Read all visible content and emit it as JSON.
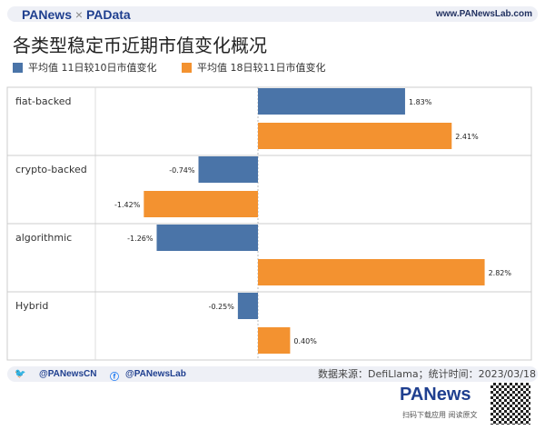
{
  "header": {
    "logo": "PANews",
    "logo_sep": "×",
    "logo2": "PAData",
    "url": "www.PANewsLab.com"
  },
  "footer": {
    "twitter": "@PANewsCN",
    "facebook": "@PANewsLab",
    "source": "数据来源：DefiLlama；统计时间：2023/03/18",
    "brand": "PANews",
    "scan": "扫码下载应用 阅读原文"
  },
  "colors": {
    "series1": "#4a74a8",
    "series2": "#f39230"
  },
  "chart_data": {
    "type": "bar",
    "orientation": "horizontal",
    "title": "各类型稳定币近期市值变化概况",
    "categories": [
      "fiat-backed",
      "crypto-backed",
      "algorithmic",
      "Hybrid"
    ],
    "series": [
      {
        "name": "平均值 11日较10日市值变化",
        "values": [
          1.83,
          -0.74,
          -1.26,
          -0.25
        ],
        "labels": [
          "1.83%",
          "-0.74%",
          "-1.26%",
          "-0.25%"
        ]
      },
      {
        "name": "平均值 18日较11日市值变化",
        "values": [
          2.41,
          -1.42,
          2.82,
          0.4
        ],
        "labels": [
          "2.41%",
          "-1.42%",
          "2.82%",
          "0.40%"
        ]
      }
    ],
    "unit": "%",
    "legend": "top-left",
    "grid": "category separators"
  }
}
